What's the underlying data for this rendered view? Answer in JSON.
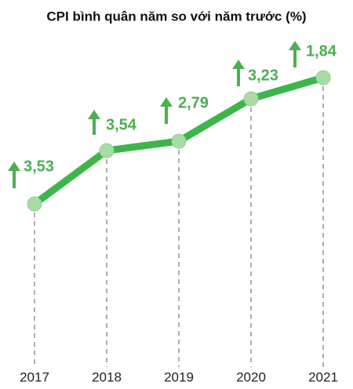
{
  "title": "CPI bình quân năm so với năm trước (%)",
  "items": [
    {
      "year": "2017",
      "value": "3,53"
    },
    {
      "year": "2018",
      "value": "3,54"
    },
    {
      "year": "2019",
      "value": "2,79"
    },
    {
      "year": "2020",
      "value": "3,23"
    },
    {
      "year": "2021",
      "value": "1,84"
    }
  ]
}
